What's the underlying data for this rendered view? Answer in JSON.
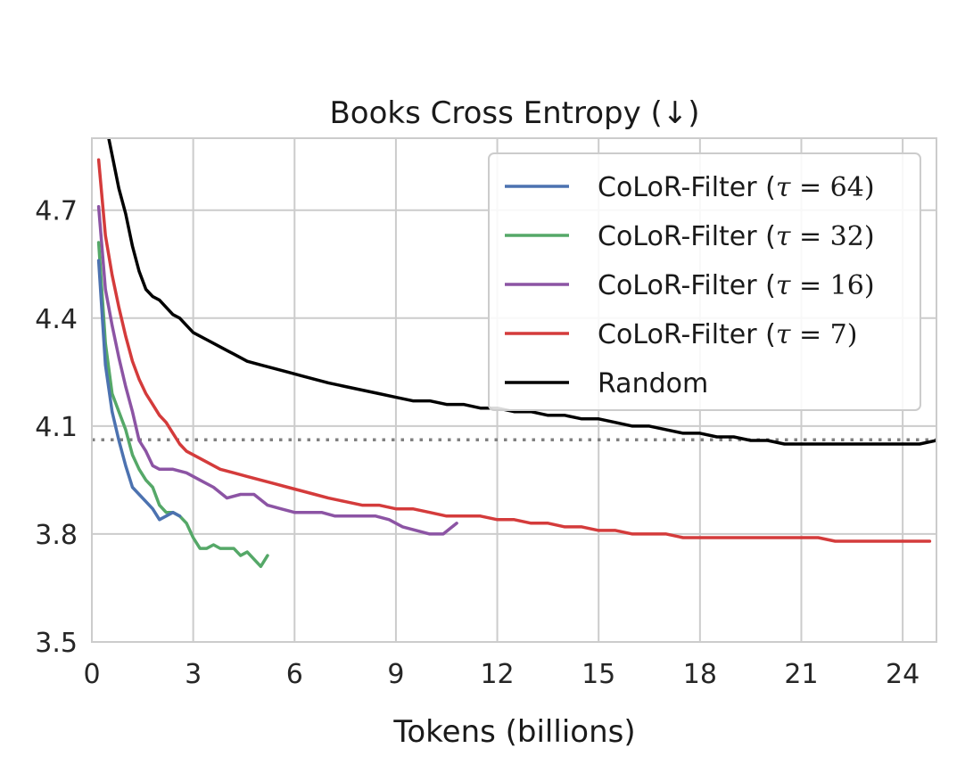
{
  "chart_data": {
    "type": "line",
    "title": "Books Cross Entropy (↓)",
    "xlabel": "Tokens (billions)",
    "ylabel": "",
    "xlim": [
      0,
      25
    ],
    "ylim": [
      3.5,
      4.9
    ],
    "x_ticks": [
      0,
      3,
      6,
      9,
      12,
      15,
      18,
      21,
      24
    ],
    "x_tick_labels": [
      "0",
      "3",
      "6",
      "9",
      "12",
      "15",
      "18",
      "21",
      "24"
    ],
    "y_ticks": [
      3.5,
      3.8,
      4.1,
      4.4,
      4.7
    ],
    "y_tick_labels": [
      "3.5",
      "3.8",
      "4.1",
      "4.4",
      "4.7"
    ],
    "grid": true,
    "legend_position": "top-right",
    "reference_line": {
      "y": 4.062,
      "style": "dotted",
      "color": "#808080"
    },
    "series": [
      {
        "name": "CoLoR-Filter (τ = 64)",
        "legend_prefix": "CoLoR-Filter (",
        "legend_var": "τ",
        "legend_op": " = ",
        "legend_num": "64",
        "legend_suffix": ")",
        "color": "#4c72b0",
        "points": [
          [
            0.2,
            4.56
          ],
          [
            0.4,
            4.27
          ],
          [
            0.6,
            4.14
          ],
          [
            0.8,
            4.06
          ],
          [
            1.0,
            3.99
          ],
          [
            1.2,
            3.93
          ],
          [
            1.4,
            3.91
          ],
          [
            1.6,
            3.89
          ],
          [
            1.8,
            3.87
          ],
          [
            2.0,
            3.84
          ],
          [
            2.2,
            3.85
          ],
          [
            2.4,
            3.86
          ],
          [
            2.6,
            3.85
          ]
        ]
      },
      {
        "name": "CoLoR-Filter (τ = 32)",
        "legend_prefix": "CoLoR-Filter (",
        "legend_var": "τ",
        "legend_op": " = ",
        "legend_num": "32",
        "legend_suffix": ")",
        "color": "#55a868",
        "points": [
          [
            0.2,
            4.61
          ],
          [
            0.4,
            4.33
          ],
          [
            0.6,
            4.19
          ],
          [
            0.8,
            4.14
          ],
          [
            1.0,
            4.09
          ],
          [
            1.2,
            4.02
          ],
          [
            1.4,
            3.98
          ],
          [
            1.6,
            3.95
          ],
          [
            1.8,
            3.93
          ],
          [
            2.0,
            3.88
          ],
          [
            2.2,
            3.86
          ],
          [
            2.4,
            3.86
          ],
          [
            2.6,
            3.85
          ],
          [
            2.8,
            3.83
          ],
          [
            3.0,
            3.79
          ],
          [
            3.2,
            3.76
          ],
          [
            3.4,
            3.76
          ],
          [
            3.6,
            3.77
          ],
          [
            3.8,
            3.76
          ],
          [
            4.0,
            3.76
          ],
          [
            4.2,
            3.76
          ],
          [
            4.4,
            3.74
          ],
          [
            4.6,
            3.75
          ],
          [
            4.8,
            3.73
          ],
          [
            5.0,
            3.71
          ],
          [
            5.2,
            3.74
          ]
        ]
      },
      {
        "name": "CoLoR-Filter (τ = 16)",
        "legend_prefix": "CoLoR-Filter (",
        "legend_var": "τ",
        "legend_op": " = ",
        "legend_num": "16",
        "legend_suffix": ")",
        "color": "#8c54a4",
        "points": [
          [
            0.2,
            4.71
          ],
          [
            0.4,
            4.48
          ],
          [
            0.6,
            4.38
          ],
          [
            0.8,
            4.29
          ],
          [
            1.0,
            4.21
          ],
          [
            1.2,
            4.14
          ],
          [
            1.4,
            4.06
          ],
          [
            1.6,
            4.03
          ],
          [
            1.8,
            3.99
          ],
          [
            2.0,
            3.98
          ],
          [
            2.4,
            3.98
          ],
          [
            2.8,
            3.97
          ],
          [
            3.2,
            3.95
          ],
          [
            3.6,
            3.93
          ],
          [
            4.0,
            3.9
          ],
          [
            4.4,
            3.91
          ],
          [
            4.8,
            3.91
          ],
          [
            5.2,
            3.88
          ],
          [
            5.6,
            3.87
          ],
          [
            6.0,
            3.86
          ],
          [
            6.4,
            3.86
          ],
          [
            6.8,
            3.86
          ],
          [
            7.2,
            3.85
          ],
          [
            7.6,
            3.85
          ],
          [
            8.0,
            3.85
          ],
          [
            8.4,
            3.85
          ],
          [
            8.8,
            3.84
          ],
          [
            9.2,
            3.82
          ],
          [
            9.6,
            3.81
          ],
          [
            10.0,
            3.8
          ],
          [
            10.4,
            3.8
          ],
          [
            10.8,
            3.83
          ]
        ]
      },
      {
        "name": "CoLoR-Filter (τ = 7)",
        "legend_prefix": "CoLoR-Filter (",
        "legend_var": "τ",
        "legend_op": " = ",
        "legend_num": "7",
        "legend_suffix": ")",
        "color": "#d43b3b",
        "points": [
          [
            0.2,
            4.84
          ],
          [
            0.4,
            4.63
          ],
          [
            0.6,
            4.52
          ],
          [
            0.8,
            4.43
          ],
          [
            1.0,
            4.35
          ],
          [
            1.2,
            4.28
          ],
          [
            1.4,
            4.23
          ],
          [
            1.6,
            4.19
          ],
          [
            1.8,
            4.16
          ],
          [
            2.0,
            4.13
          ],
          [
            2.2,
            4.11
          ],
          [
            2.4,
            4.08
          ],
          [
            2.6,
            4.05
          ],
          [
            2.8,
            4.03
          ],
          [
            3.0,
            4.02
          ],
          [
            3.4,
            4.0
          ],
          [
            3.8,
            3.98
          ],
          [
            4.2,
            3.97
          ],
          [
            4.6,
            3.96
          ],
          [
            5.0,
            3.95
          ],
          [
            5.4,
            3.94
          ],
          [
            5.8,
            3.93
          ],
          [
            6.2,
            3.92
          ],
          [
            6.6,
            3.91
          ],
          [
            7.0,
            3.9
          ],
          [
            7.5,
            3.89
          ],
          [
            8.0,
            3.88
          ],
          [
            8.5,
            3.88
          ],
          [
            9.0,
            3.87
          ],
          [
            9.5,
            3.87
          ],
          [
            10.0,
            3.86
          ],
          [
            10.5,
            3.85
          ],
          [
            11.0,
            3.85
          ],
          [
            11.5,
            3.85
          ],
          [
            12.0,
            3.84
          ],
          [
            12.5,
            3.84
          ],
          [
            13.0,
            3.83
          ],
          [
            13.5,
            3.83
          ],
          [
            14.0,
            3.82
          ],
          [
            14.5,
            3.82
          ],
          [
            15.0,
            3.81
          ],
          [
            15.5,
            3.81
          ],
          [
            16.0,
            3.8
          ],
          [
            16.5,
            3.8
          ],
          [
            17.0,
            3.8
          ],
          [
            17.5,
            3.79
          ],
          [
            18.0,
            3.79
          ],
          [
            18.5,
            3.79
          ],
          [
            19.0,
            3.79
          ],
          [
            19.5,
            3.79
          ],
          [
            20.0,
            3.79
          ],
          [
            20.5,
            3.79
          ],
          [
            21.0,
            3.79
          ],
          [
            21.5,
            3.79
          ],
          [
            22.0,
            3.78
          ],
          [
            22.5,
            3.78
          ],
          [
            23.0,
            3.78
          ],
          [
            23.5,
            3.78
          ],
          [
            24.0,
            3.78
          ],
          [
            24.5,
            3.78
          ],
          [
            24.8,
            3.78
          ]
        ]
      },
      {
        "name": "Random",
        "color": "#000000",
        "points": [
          [
            0.5,
            4.9
          ],
          [
            0.8,
            4.76
          ],
          [
            1.0,
            4.69
          ],
          [
            1.2,
            4.6
          ],
          [
            1.4,
            4.53
          ],
          [
            1.6,
            4.48
          ],
          [
            1.8,
            4.46
          ],
          [
            2.0,
            4.45
          ],
          [
            2.2,
            4.43
          ],
          [
            2.4,
            4.41
          ],
          [
            2.6,
            4.4
          ],
          [
            2.8,
            4.38
          ],
          [
            3.0,
            4.36
          ],
          [
            3.4,
            4.34
          ],
          [
            3.8,
            4.32
          ],
          [
            4.2,
            4.3
          ],
          [
            4.6,
            4.28
          ],
          [
            5.0,
            4.27
          ],
          [
            5.4,
            4.26
          ],
          [
            5.8,
            4.25
          ],
          [
            6.2,
            4.24
          ],
          [
            6.6,
            4.23
          ],
          [
            7.0,
            4.22
          ],
          [
            7.5,
            4.21
          ],
          [
            8.0,
            4.2
          ],
          [
            8.5,
            4.19
          ],
          [
            9.0,
            4.18
          ],
          [
            9.5,
            4.17
          ],
          [
            10.0,
            4.17
          ],
          [
            10.5,
            4.16
          ],
          [
            11.0,
            4.16
          ],
          [
            11.5,
            4.15
          ],
          [
            12.0,
            4.15
          ],
          [
            12.5,
            4.14
          ],
          [
            13.0,
            4.14
          ],
          [
            13.5,
            4.13
          ],
          [
            14.0,
            4.13
          ],
          [
            14.5,
            4.12
          ],
          [
            15.0,
            4.12
          ],
          [
            15.5,
            4.11
          ],
          [
            16.0,
            4.1
          ],
          [
            16.5,
            4.1
          ],
          [
            17.0,
            4.09
          ],
          [
            17.5,
            4.08
          ],
          [
            18.0,
            4.08
          ],
          [
            18.5,
            4.07
          ],
          [
            19.0,
            4.07
          ],
          [
            19.5,
            4.06
          ],
          [
            20.0,
            4.06
          ],
          [
            20.5,
            4.05
          ],
          [
            21.0,
            4.05
          ],
          [
            21.5,
            4.05
          ],
          [
            22.0,
            4.05
          ],
          [
            22.5,
            4.05
          ],
          [
            23.0,
            4.05
          ],
          [
            23.5,
            4.05
          ],
          [
            24.0,
            4.05
          ],
          [
            24.5,
            4.05
          ],
          [
            25.0,
            4.06
          ]
        ]
      }
    ]
  }
}
